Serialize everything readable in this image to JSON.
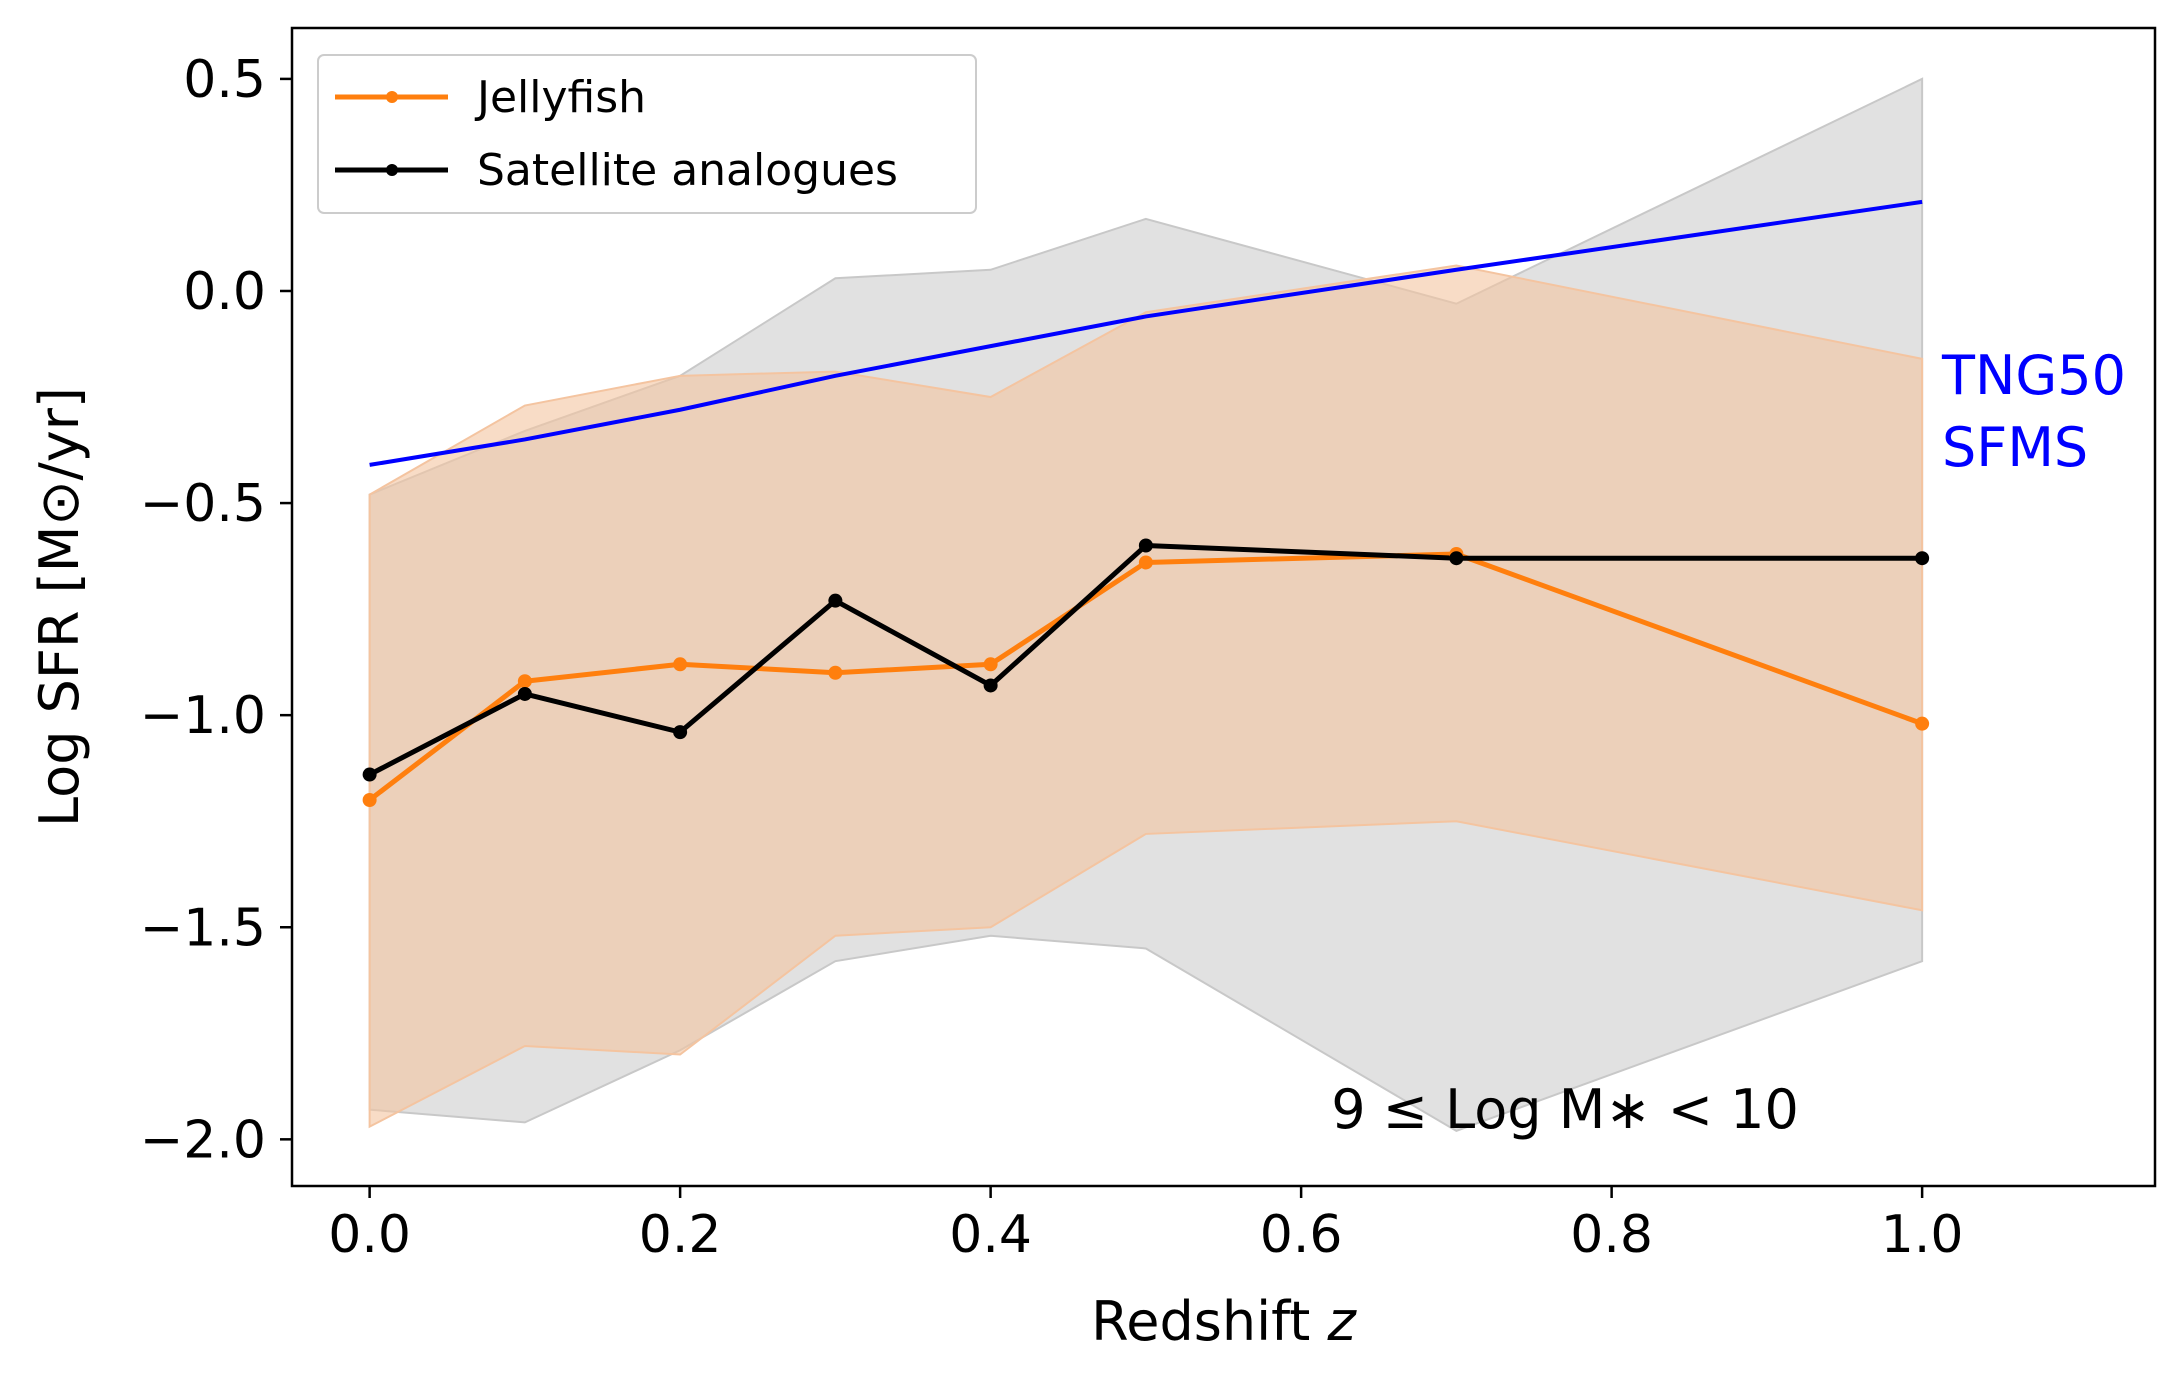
{
  "chart_data": {
    "type": "line",
    "title": "",
    "xlabel": "Redshift",
    "xlabel_var": "z",
    "ylabel": "Log SFR [M⊙/yr]",
    "xlim": [
      -0.05,
      1.15
    ],
    "ylim": [
      -2.11,
      0.62
    ],
    "grid": false,
    "legend_position": "top-left",
    "x_ticks": [
      0.0,
      0.2,
      0.4,
      0.6,
      0.8,
      1.0
    ],
    "x_tick_labels": [
      "0.0",
      "0.2",
      "0.4",
      "0.6",
      "0.8",
      "1.0"
    ],
    "y_ticks": [
      0.5,
      0.0,
      -0.5,
      -1.0,
      -1.5,
      -2.0
    ],
    "y_tick_labels": [
      "0.5",
      "0.0",
      "−0.5",
      "−1.0",
      "−1.5",
      "−2.0"
    ],
    "series": [
      {
        "name": "Jellyfish",
        "color": "#ff7f0e",
        "x": [
          0.0,
          0.1,
          0.2,
          0.3,
          0.4,
          0.5,
          0.7,
          1.0
        ],
        "values": [
          -1.2,
          -0.92,
          -0.88,
          -0.9,
          -0.88,
          -0.64,
          -0.62,
          -1.02
        ],
        "band_upper": [
          -0.48,
          -0.27,
          -0.2,
          -0.19,
          -0.25,
          -0.05,
          0.06,
          -0.16
        ],
        "band_lower": [
          -1.97,
          -1.78,
          -1.8,
          -1.52,
          -1.5,
          -1.28,
          -1.25,
          -1.46
        ],
        "band_color": "#f4c4a0"
      },
      {
        "name": "Satellite analogues",
        "color": "#000000",
        "x": [
          0.0,
          0.1,
          0.2,
          0.3,
          0.4,
          0.5,
          0.7,
          1.0
        ],
        "values": [
          -1.14,
          -0.95,
          -1.04,
          -0.73,
          -0.93,
          -0.6,
          -0.63,
          -0.63
        ],
        "band_upper": [
          -0.48,
          -0.33,
          -0.2,
          0.03,
          0.05,
          0.17,
          -0.03,
          0.5
        ],
        "band_lower": [
          -1.93,
          -1.96,
          -1.79,
          -1.58,
          -1.52,
          -1.55,
          -1.98,
          -1.58
        ],
        "band_color": "#c8c8c8"
      }
    ],
    "reference_line": {
      "name": "TNG50 SFMS",
      "label_lines": [
        "TNG50",
        "SFMS"
      ],
      "color": "#0000ff",
      "x": [
        0.0,
        0.1,
        0.2,
        0.3,
        0.4,
        0.5,
        0.7,
        1.0
      ],
      "values": [
        -0.41,
        -0.35,
        -0.28,
        -0.2,
        -0.13,
        -0.06,
        0.05,
        0.21
      ]
    },
    "annotations": [
      {
        "text": "9 ≤ Log M∗ < 10",
        "x": 0.77,
        "y": -1.93
      }
    ]
  }
}
